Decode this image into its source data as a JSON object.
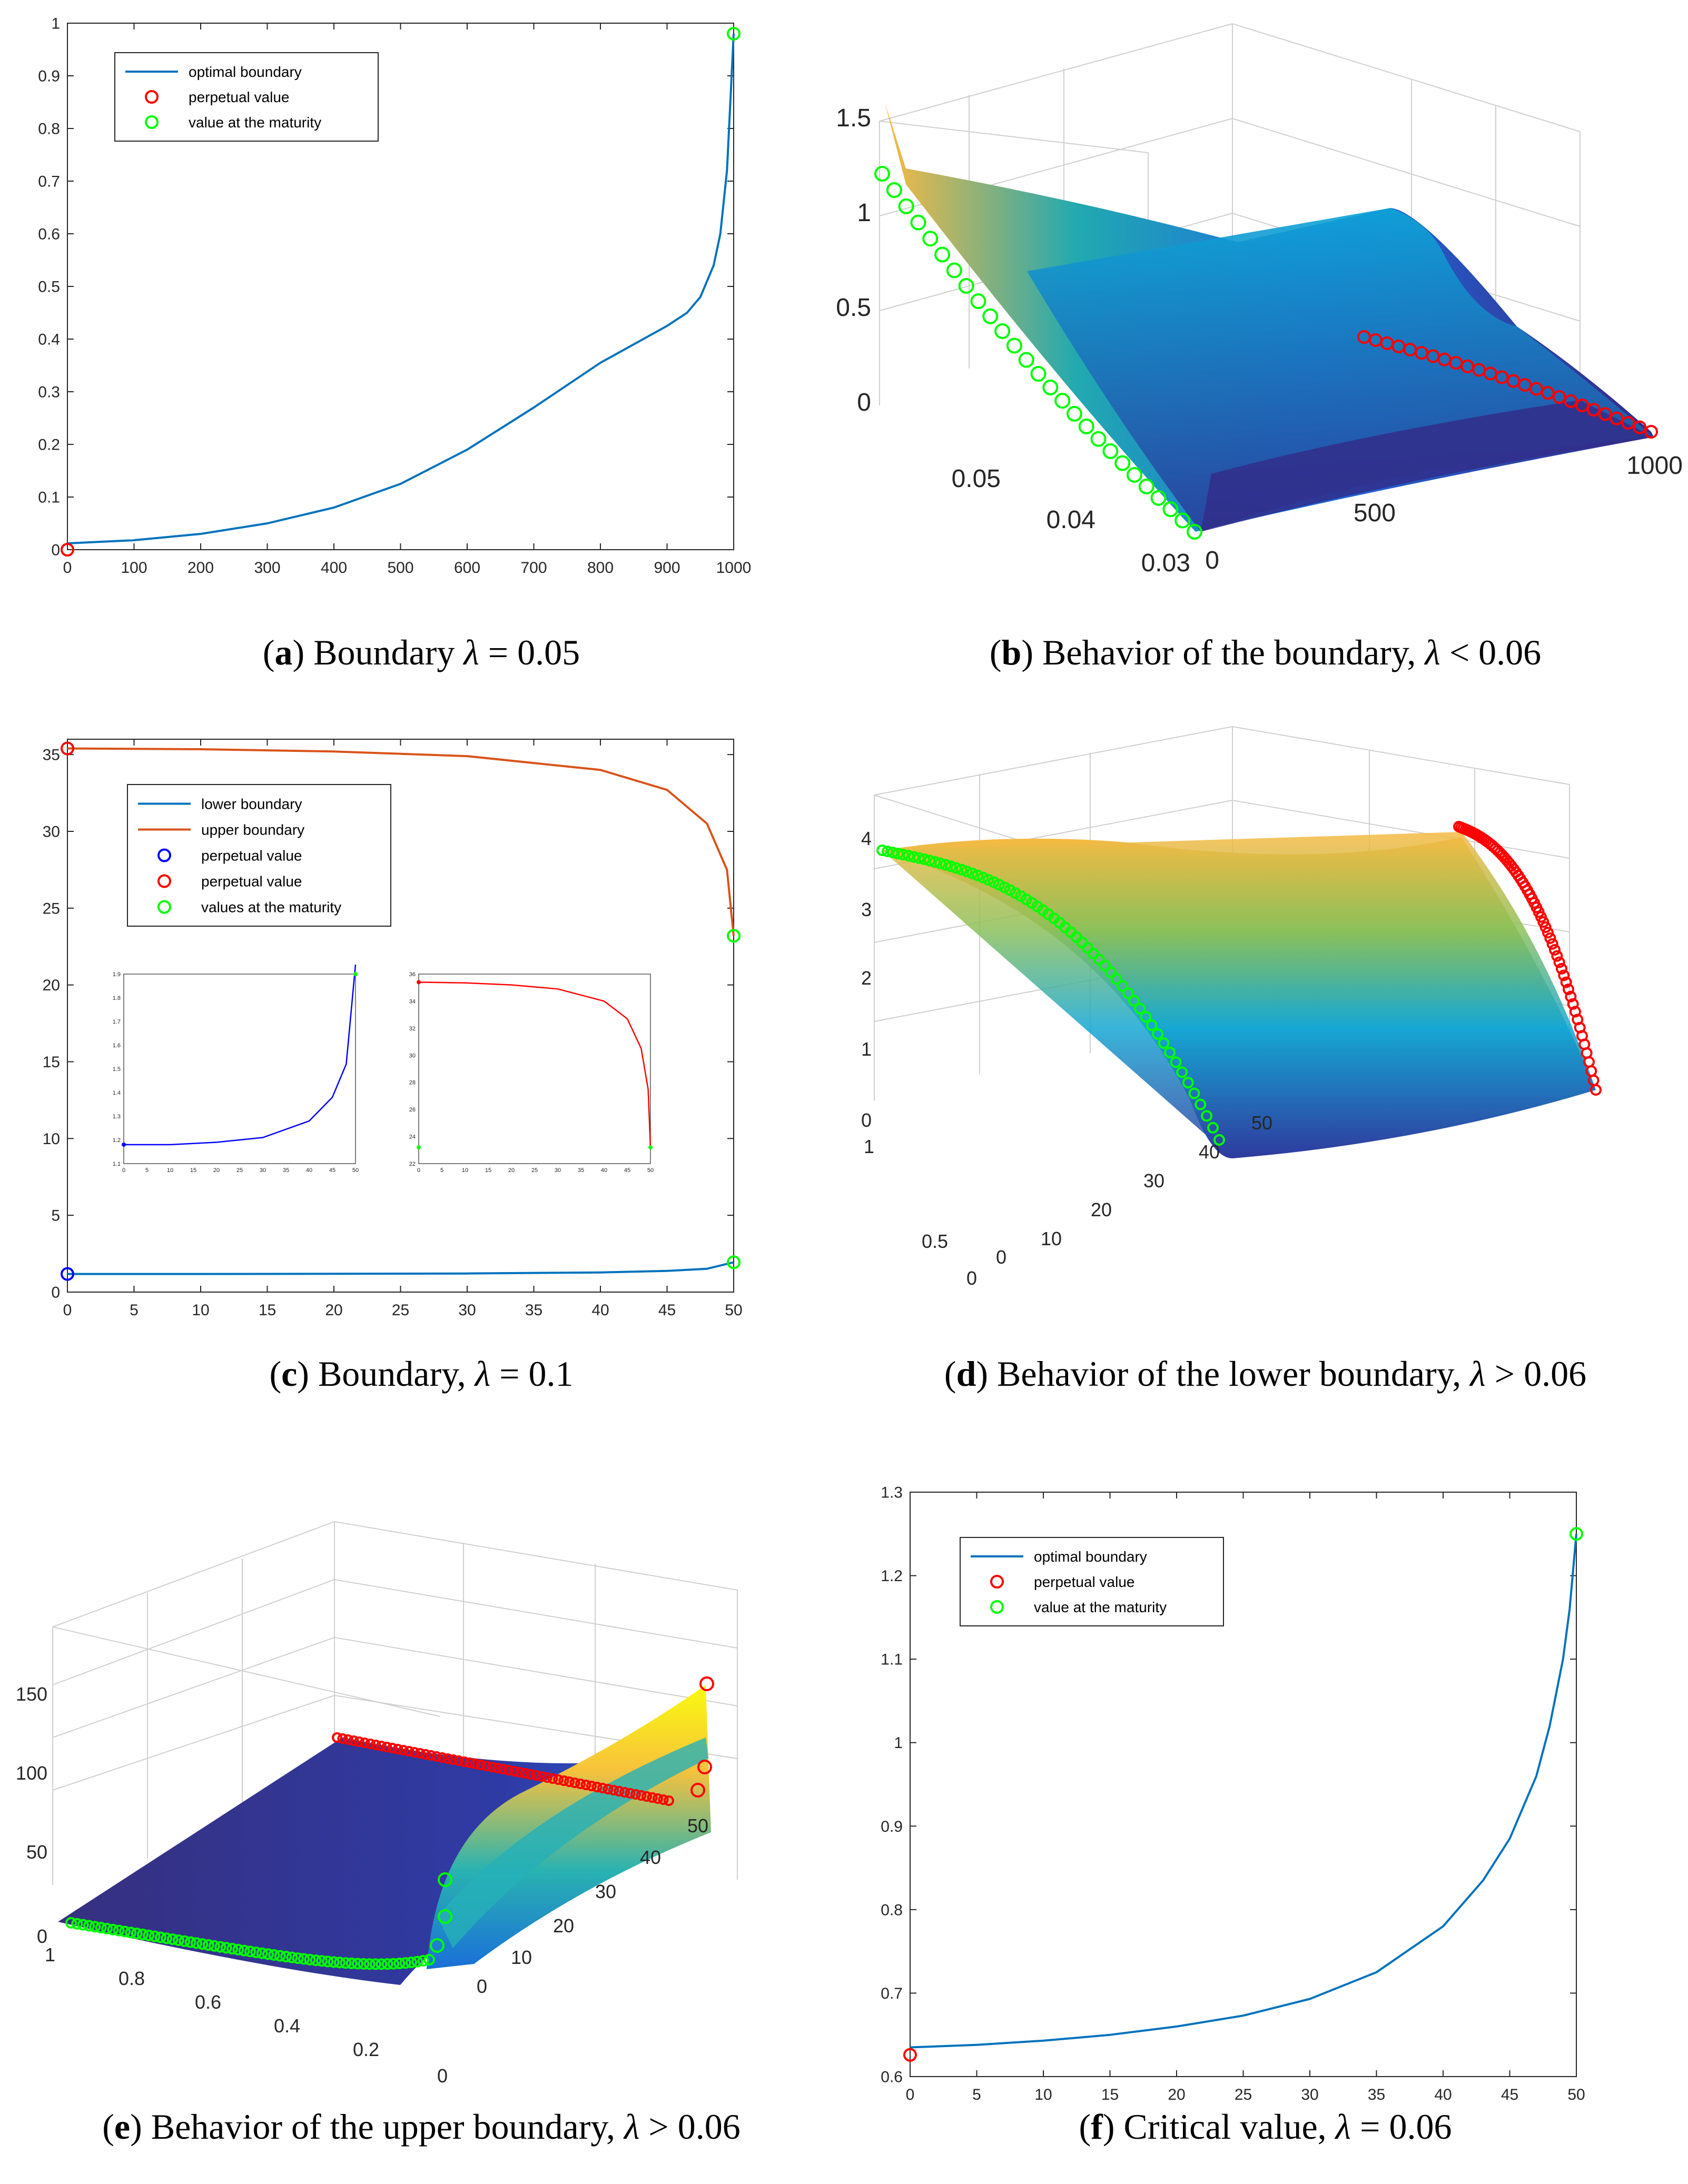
{
  "colors": {
    "matlab_blue": "#0072bd",
    "matlab_orange": "#d95319",
    "perpetual_red": "#ff0000",
    "maturity_green": "#00ff00",
    "pure_blue": "#0000ff",
    "parula_dark": "#352a87",
    "parula_mid": "#21a9b0",
    "parula_yellow": "#f9fb0e",
    "parula_orange": "#f8ba43"
  },
  "captions": [
    {
      "letter": "a",
      "before": " Boundary ",
      "lambda": "λ",
      "after": " = 0.05"
    },
    {
      "letter": "b",
      "before": " Behavior of the boundary, ",
      "lambda": "λ",
      "after": " < 0.06"
    },
    {
      "letter": "c",
      "before": " Boundary, ",
      "lambda": "λ",
      "after": " = 0.1"
    },
    {
      "letter": "d",
      "before": " Behavior of the lower boundary, ",
      "lambda": "λ",
      "after": " > 0.06"
    },
    {
      "letter": "e",
      "before": " Behavior of the upper boundary, ",
      "lambda": "λ",
      "after": " > 0.06"
    },
    {
      "letter": "f",
      "before": " Critical value, ",
      "lambda": "λ",
      "after": " = 0.06"
    }
  ],
  "chart_data": [
    {
      "id": "a",
      "type": "line",
      "title": "Boundary λ = 0.05",
      "xlim": [
        0,
        1000
      ],
      "ylim": [
        0,
        1
      ],
      "xticks": [
        "0",
        "100",
        "200",
        "300",
        "400",
        "500",
        "600",
        "700",
        "800",
        "900",
        "1000"
      ],
      "yticks": [
        "0",
        "0.1",
        "0.2",
        "0.3",
        "0.4",
        "0.5",
        "0.6",
        "0.7",
        "0.8",
        "0.9",
        "1"
      ],
      "series": [
        {
          "name": "optimal boundary",
          "x": [
            0,
            100,
            200,
            300,
            400,
            500,
            600,
            700,
            800,
            850,
            900,
            930,
            950,
            970,
            980,
            990,
            995,
            1000
          ],
          "y": [
            0.012,
            0.018,
            0.03,
            0.05,
            0.08,
            0.125,
            0.19,
            0.27,
            0.355,
            0.39,
            0.425,
            0.45,
            0.48,
            0.54,
            0.6,
            0.72,
            0.85,
            0.98
          ]
        }
      ],
      "points": [
        {
          "name": "perpetual value",
          "x": 0,
          "y": 0.0,
          "color": "red"
        },
        {
          "name": "value at the maturity",
          "x": 1000,
          "y": 0.98,
          "color": "green"
        }
      ],
      "legend": [
        "optimal boundary",
        "perpetual value",
        "value at the maturity"
      ],
      "legend_position": "top-left"
    },
    {
      "id": "b",
      "type": "surface3d",
      "title": "Behavior of the boundary, λ < 0.06",
      "zticks": [
        "0",
        "0.5",
        "1",
        "1.5"
      ],
      "lambda_ticks": [
        "0.05",
        "0.04",
        "0.03"
      ],
      "t_ticks": [
        "0",
        "500",
        "1000"
      ],
      "green_curve": {
        "description": "value at the maturity",
        "lambda_range": [
          0.03,
          0.055
        ],
        "z_range": [
          0.0,
          1.2
        ]
      },
      "red_curve": {
        "description": "perpetual value",
        "t_range": [
          500,
          1000
        ],
        "z": 0.0
      }
    },
    {
      "id": "c",
      "type": "line",
      "title": "Boundary, λ = 0.1",
      "xlim": [
        0,
        50
      ],
      "ylim": [
        0,
        36
      ],
      "xticks": [
        "0",
        "5",
        "10",
        "15",
        "20",
        "25",
        "30",
        "35",
        "40",
        "45",
        "50"
      ],
      "yticks": [
        "0",
        "5",
        "10",
        "15",
        "20",
        "25",
        "30",
        "35"
      ],
      "series": [
        {
          "name": "lower boundary",
          "x": [
            0,
            10,
            20,
            30,
            40,
            45,
            48,
            50
          ],
          "y": [
            1.18,
            1.18,
            1.19,
            1.21,
            1.28,
            1.38,
            1.52,
            1.94
          ]
        },
        {
          "name": "upper boundary",
          "x": [
            0,
            10,
            20,
            30,
            40,
            45,
            48,
            49.5,
            50
          ],
          "y": [
            35.4,
            35.35,
            35.2,
            34.9,
            34.0,
            32.7,
            30.5,
            27.5,
            23.2
          ]
        }
      ],
      "points": [
        {
          "name": "perpetual value",
          "x": 0,
          "y": 1.18,
          "color": "blue"
        },
        {
          "name": "perpetual value",
          "x": 0,
          "y": 35.4,
          "color": "red"
        },
        {
          "name": "values at the maturity",
          "x": 50,
          "y": 23.2,
          "color": "green"
        },
        {
          "name": "values at the maturity",
          "x": 50,
          "y": 1.94,
          "color": "green"
        }
      ],
      "legend": [
        "lower boundary",
        "upper boundary",
        "perpetual value",
        "perpetual value",
        "values at the maturity"
      ],
      "legend_position": "top-center",
      "insets": [
        {
          "xticks": [
            "0",
            "5",
            "10",
            "15",
            "20",
            "25",
            "30",
            "35",
            "40",
            "45",
            "50"
          ],
          "yticks": [
            "1.1",
            "1.2",
            "1.3",
            "1.4",
            "1.5",
            "1.6",
            "1.7",
            "1.8",
            "1.9"
          ],
          "ylim": [
            1.1,
            1.9
          ]
        },
        {
          "xticks": [
            "0",
            "5",
            "10",
            "15",
            "20",
            "25",
            "30",
            "35",
            "40",
            "45",
            "50"
          ],
          "yticks": [
            "22",
            "24",
            "26",
            "28",
            "30",
            "32",
            "34",
            "36"
          ],
          "ylim": [
            22,
            36
          ]
        }
      ]
    },
    {
      "id": "d",
      "type": "surface3d",
      "title": "Behavior of the lower boundary, λ > 0.06",
      "zticks": [
        "0",
        "1",
        "2",
        "3",
        "4"
      ],
      "lambda_ticks": [
        "0",
        "0.5",
        "1"
      ],
      "t_ticks": [
        "0",
        "10",
        "20",
        "30",
        "40",
        "50"
      ]
    },
    {
      "id": "e",
      "type": "surface3d",
      "title": "Behavior of the upper boundary, λ > 0.06",
      "zticks": [
        "0",
        "50",
        "100",
        "150"
      ],
      "lambda_ticks": [
        "1",
        "0.8",
        "0.6",
        "0.4",
        "0.2",
        "0"
      ],
      "t_ticks": [
        "0",
        "10",
        "20",
        "30",
        "40",
        "50"
      ]
    },
    {
      "id": "f",
      "type": "line",
      "title": "Critical value, λ = 0.06",
      "xlim": [
        0,
        50
      ],
      "ylim": [
        0.6,
        1.3
      ],
      "xticks": [
        "0",
        "5",
        "10",
        "15",
        "20",
        "25",
        "30",
        "35",
        "40",
        "45",
        "50"
      ],
      "yticks": [
        "0.6",
        "0.7",
        "0.8",
        "0.9",
        "1",
        "1.1",
        "1.2",
        "1.3"
      ],
      "series": [
        {
          "name": "optimal boundary",
          "x": [
            0,
            5,
            10,
            15,
            20,
            25,
            30,
            35,
            40,
            43,
            45,
            47,
            48,
            49,
            49.5,
            50
          ],
          "y": [
            0.635,
            0.638,
            0.643,
            0.65,
            0.66,
            0.673,
            0.693,
            0.725,
            0.78,
            0.835,
            0.885,
            0.96,
            1.02,
            1.1,
            1.16,
            1.25
          ]
        }
      ],
      "points": [
        {
          "name": "perpetual value",
          "x": 0,
          "y": 0.626,
          "color": "red"
        },
        {
          "name": "value at the maturity",
          "x": 50,
          "y": 1.25,
          "color": "green"
        }
      ],
      "legend": [
        "optimal boundary",
        "perpetual value",
        "value at the maturity"
      ],
      "legend_position": "top-left"
    }
  ]
}
